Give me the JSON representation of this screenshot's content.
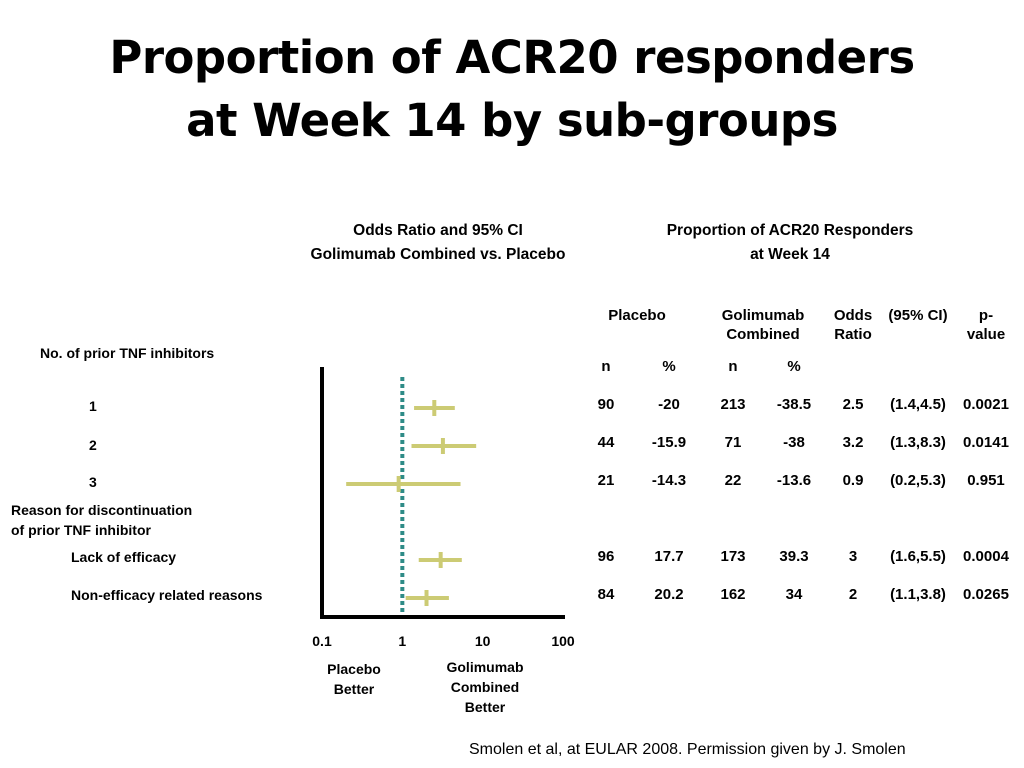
{
  "slide": {
    "title_line1": "Proportion of ACR20 responders",
    "title_line2": "at Week 14 by sub-groups",
    "source": "Smolen et al, at EULAR 2008. Permission given by J. Smolen"
  },
  "forest_header": {
    "line1": "Odds Ratio and 95% CI",
    "line2": "Golimumab Combined vs. Placebo"
  },
  "table_header": {
    "line1": "Proportion of ACR20 Responders",
    "line2": "at Week 14"
  },
  "columns": {
    "placebo": "Placebo",
    "golimumab_line1": "Golimumab",
    "golimumab_line2": "Combined",
    "odds_line1": "Odds",
    "odds_line2": "Ratio",
    "ci": "(95% CI)",
    "p_line1": "p-",
    "p_line2": "value",
    "n1": "n",
    "pct1": "%",
    "n2": "n",
    "pct2": "%"
  },
  "groups": {
    "tnf": "No. of prior TNF inhibitors",
    "reason_line1": "Reason for discontinuation",
    "reason_line2": "of prior TNF inhibitor"
  },
  "axis_text": {
    "placebo_better_line1": "Placebo",
    "placebo_better_line2": "Better",
    "golimumab_better_line1": "Golimumab",
    "golimumab_better_line2": "Combined",
    "golimumab_better_line3": "Better"
  },
  "rows": [
    {
      "label": "1",
      "placebo_n": "90",
      "placebo_pct": "-20",
      "gol_n": "213",
      "gol_pct": "-38.5",
      "or": "2.5",
      "ci": "(1.4,4.5)",
      "p": "0.0021"
    },
    {
      "label": "2",
      "placebo_n": "44",
      "placebo_pct": "-15.9",
      "gol_n": "71",
      "gol_pct": "-38",
      "or": "3.2",
      "ci": "(1.3,8.3)",
      "p": "0.0141"
    },
    {
      "label": "3",
      "placebo_n": "21",
      "placebo_pct": "-14.3",
      "gol_n": "22",
      "gol_pct": "-13.6",
      "or": "0.9",
      "ci": "(0.2,5.3)",
      "p": "0.951"
    },
    {
      "label": "Lack of efficacy",
      "placebo_n": "96",
      "placebo_pct": "17.7",
      "gol_n": "173",
      "gol_pct": "39.3",
      "or": "3",
      "ci": "(1.6,5.5)",
      "p": "0.0004"
    },
    {
      "label": "Non-efficacy related reasons",
      "placebo_n": "84",
      "placebo_pct": "20.2",
      "gol_n": "162",
      "gol_pct": "34",
      "or": "2",
      "ci": "(1.1,3.8)",
      "p": "0.0265"
    }
  ],
  "chart_data": {
    "type": "forest",
    "x_scale": "log",
    "xlim": [
      0.1,
      100
    ],
    "xticks": [
      "0.1",
      "1",
      "10",
      "100"
    ],
    "reference_line": 1,
    "colors": {
      "marker": "#cccb74",
      "reference": "#2e8b87",
      "axis": "#000000"
    },
    "points": [
      {
        "label": "1",
        "or": 2.5,
        "lo": 1.4,
        "hi": 4.5
      },
      {
        "label": "2",
        "or": 3.2,
        "lo": 1.3,
        "hi": 8.3
      },
      {
        "label": "3",
        "or": 0.9,
        "lo": 0.2,
        "hi": 5.3
      },
      {
        "label": "Lack of efficacy",
        "or": 3,
        "lo": 1.6,
        "hi": 5.5
      },
      {
        "label": "Non-efficacy related reasons",
        "or": 2,
        "lo": 1.1,
        "hi": 3.8
      }
    ]
  }
}
